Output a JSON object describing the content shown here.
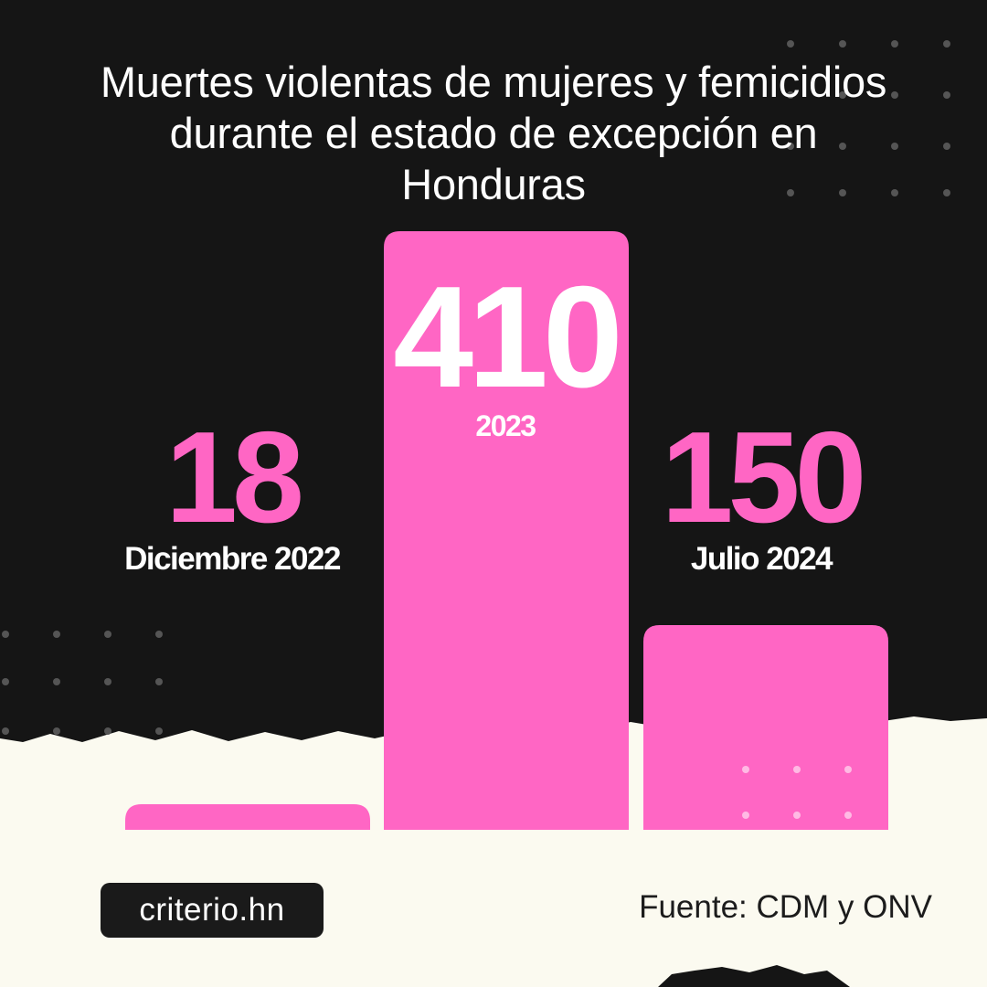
{
  "colors": {
    "bar": "#ff66c4",
    "dark": "#151515",
    "paper": "#fbfaf0",
    "label_white": "#ffffff"
  },
  "chart_data": {
    "type": "bar",
    "title": "Muertes violentas de mujeres y femicidios durante el estado de excepción en Honduras",
    "categories": [
      "Diciembre 2022",
      "2023",
      "Julio 2024"
    ],
    "values": [
      18,
      410,
      150
    ],
    "value_labels": [
      "18",
      "410",
      "150"
    ],
    "xlabel": "",
    "ylabel": "",
    "grid": false,
    "legend": "none"
  },
  "brand": "criterio.hn",
  "source": "Fuente: CDM y ONV"
}
